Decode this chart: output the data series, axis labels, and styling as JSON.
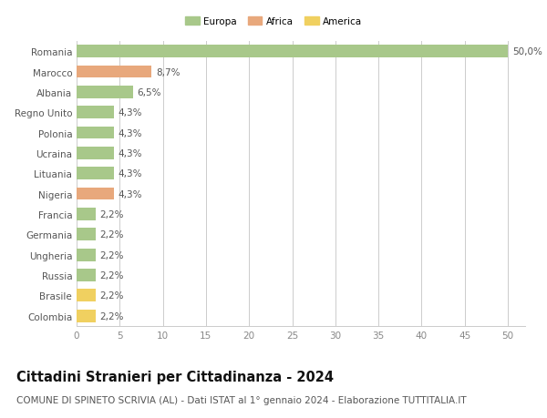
{
  "countries": [
    "Romania",
    "Marocco",
    "Albania",
    "Regno Unito",
    "Polonia",
    "Ucraina",
    "Lituania",
    "Nigeria",
    "Francia",
    "Germania",
    "Ungheria",
    "Russia",
    "Brasile",
    "Colombia"
  ],
  "values": [
    50.0,
    8.7,
    6.5,
    4.3,
    4.3,
    4.3,
    4.3,
    4.3,
    2.2,
    2.2,
    2.2,
    2.2,
    2.2,
    2.2
  ],
  "labels": [
    "50,0%",
    "8,7%",
    "6,5%",
    "4,3%",
    "4,3%",
    "4,3%",
    "4,3%",
    "4,3%",
    "2,2%",
    "2,2%",
    "2,2%",
    "2,2%",
    "2,2%",
    "2,2%"
  ],
  "continents": [
    "Europa",
    "Africa",
    "Europa",
    "Europa",
    "Europa",
    "Europa",
    "Europa",
    "Africa",
    "Europa",
    "Europa",
    "Europa",
    "Europa",
    "America",
    "America"
  ],
  "colors": {
    "Europa": "#a8c88a",
    "Africa": "#e8a87c",
    "America": "#f0d060"
  },
  "legend_labels": [
    "Europa",
    "Africa",
    "America"
  ],
  "legend_colors": [
    "#a8c88a",
    "#e8a87c",
    "#f0d060"
  ],
  "xlim": [
    0,
    52
  ],
  "xticks": [
    0,
    5,
    10,
    15,
    20,
    25,
    30,
    35,
    40,
    45,
    50
  ],
  "title": "Cittadini Stranieri per Cittadinanza - 2024",
  "subtitle": "COMUNE DI SPINETO SCRIVIA (AL) - Dati ISTAT al 1° gennaio 2024 - Elaborazione TUTTITALIA.IT",
  "title_fontsize": 10.5,
  "subtitle_fontsize": 7.5,
  "label_fontsize": 7.5,
  "tick_fontsize": 7.5,
  "bg_color": "#ffffff",
  "grid_color": "#cccccc"
}
